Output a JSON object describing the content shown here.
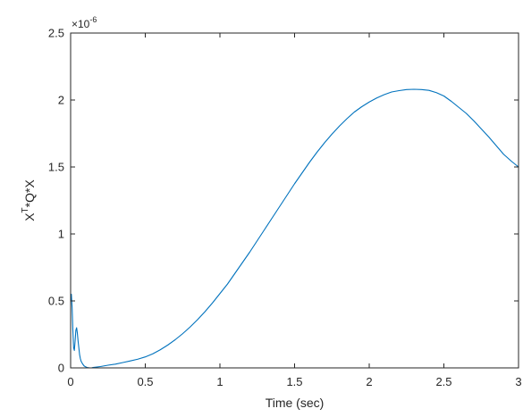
{
  "chart_data": {
    "type": "line",
    "title": "",
    "xlabel": "Time (sec)",
    "ylabel": {
      "base": "X",
      "superscript": "T",
      "rest": "*Q*X"
    },
    "y_exponent": {
      "base": "×10",
      "power": "-6"
    },
    "xlim": [
      0,
      3
    ],
    "ylim": [
      0,
      2.5
    ],
    "xticks": [
      {
        "value": 0,
        "label": "0"
      },
      {
        "value": 0.5,
        "label": "0.5"
      },
      {
        "value": 1,
        "label": "1"
      },
      {
        "value": 1.5,
        "label": "1.5"
      },
      {
        "value": 2,
        "label": "2"
      },
      {
        "value": 2.5,
        "label": "2.5"
      },
      {
        "value": 3,
        "label": "3"
      }
    ],
    "yticks": [
      {
        "value": 0,
        "label": "0"
      },
      {
        "value": 0.5,
        "label": "0.5"
      },
      {
        "value": 1,
        "label": "1"
      },
      {
        "value": 1.5,
        "label": "1.5"
      },
      {
        "value": 2,
        "label": "2"
      },
      {
        "value": 2.5,
        "label": "2.5"
      }
    ],
    "grid": false,
    "line_color": "#0072bd",
    "axis_color": "#262626",
    "series": [
      {
        "x": [
          0,
          0.005,
          0.01,
          0.015,
          0.02,
          0.025,
          0.03,
          0.035,
          0.04,
          0.045,
          0.05,
          0.055,
          0.06,
          0.065,
          0.07,
          0.075,
          0.08,
          0.09,
          0.1,
          0.11,
          0.12,
          0.13,
          0.14,
          0.15,
          0.2,
          0.25,
          0.3,
          0.35,
          0.4,
          0.45,
          0.5,
          0.55,
          0.6,
          0.65,
          0.7,
          0.75,
          0.8,
          0.85,
          0.9,
          0.95,
          1.0,
          1.05,
          1.1,
          1.15,
          1.2,
          1.25,
          1.3,
          1.35,
          1.4,
          1.45,
          1.5,
          1.55,
          1.6,
          1.65,
          1.7,
          1.75,
          1.8,
          1.85,
          1.9,
          1.95,
          2.0,
          2.05,
          2.1,
          2.15,
          2.2,
          2.25,
          2.3,
          2.35,
          2.4,
          2.45,
          2.5,
          2.55,
          2.6,
          2.65,
          2.7,
          2.75,
          2.8,
          2.85,
          2.9,
          2.95,
          3.0
        ],
        "y": [
          0.5,
          0.55,
          0.45,
          0.28,
          0.15,
          0.13,
          0.2,
          0.28,
          0.3,
          0.26,
          0.2,
          0.15,
          0.1,
          0.07,
          0.05,
          0.04,
          0.03,
          0.015,
          0.008,
          0.003,
          0.001,
          0.0,
          0.0,
          0.003,
          0.01,
          0.02,
          0.028,
          0.04,
          0.052,
          0.065,
          0.082,
          0.105,
          0.135,
          0.17,
          0.21,
          0.255,
          0.305,
          0.36,
          0.42,
          0.485,
          0.555,
          0.625,
          0.705,
          0.785,
          0.865,
          0.95,
          1.035,
          1.12,
          1.205,
          1.29,
          1.375,
          1.455,
          1.535,
          1.61,
          1.68,
          1.745,
          1.805,
          1.86,
          1.91,
          1.95,
          1.985,
          2.015,
          2.04,
          2.06,
          2.07,
          2.078,
          2.08,
          2.078,
          2.072,
          2.055,
          2.03,
          1.99,
          1.945,
          1.9,
          1.845,
          1.785,
          1.725,
          1.66,
          1.595,
          1.545,
          1.5
        ]
      }
    ]
  }
}
